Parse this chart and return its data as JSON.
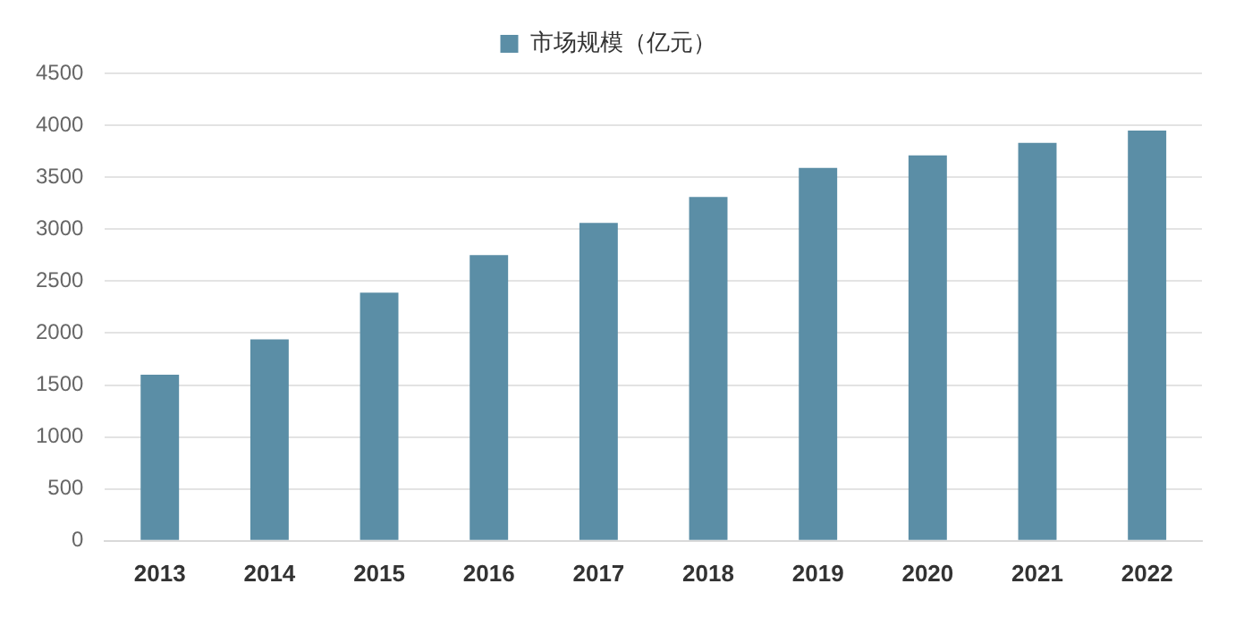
{
  "chart_data": {
    "type": "bar",
    "categories": [
      "2013",
      "2014",
      "2015",
      "2016",
      "2017",
      "2018",
      "2019",
      "2020",
      "2021",
      "2022"
    ],
    "series": [
      {
        "name": "市场规模（亿元）",
        "color": "#5b8ea6",
        "values": [
          1600,
          1940,
          2390,
          2750,
          3060,
          3310,
          3590,
          3710,
          3830,
          3950
        ]
      }
    ],
    "ylim": [
      0,
      4500
    ],
    "yticks": [
      0,
      500,
      1000,
      1500,
      2000,
      2500,
      3000,
      3500,
      4000,
      4500
    ],
    "grid": "y",
    "legend": "top"
  }
}
